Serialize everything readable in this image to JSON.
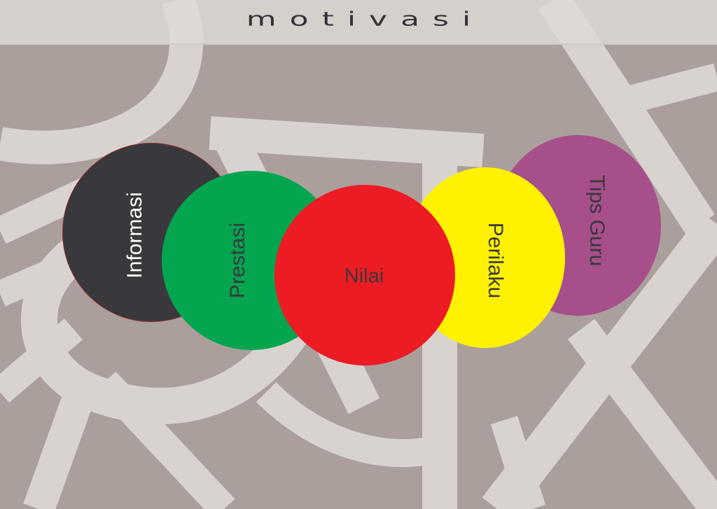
{
  "title": "motivasi",
  "circles": {
    "informasi": {
      "label": "Informasi",
      "color": "#38383d"
    },
    "prestasi": {
      "label": "Prestasi",
      "color": "#03a54e"
    },
    "nilai": {
      "label": "Nilai",
      "color": "#ed1c24"
    },
    "perilaku": {
      "label": "Perilaku",
      "color": "#fff200"
    },
    "tips_guru": {
      "label": "Tips Guru",
      "color": "#a64f8a"
    }
  },
  "colors": {
    "background": "#ab9f9c",
    "pattern": "#d9d3d0",
    "header": "#dfdbd8",
    "title_text": "#333236"
  }
}
